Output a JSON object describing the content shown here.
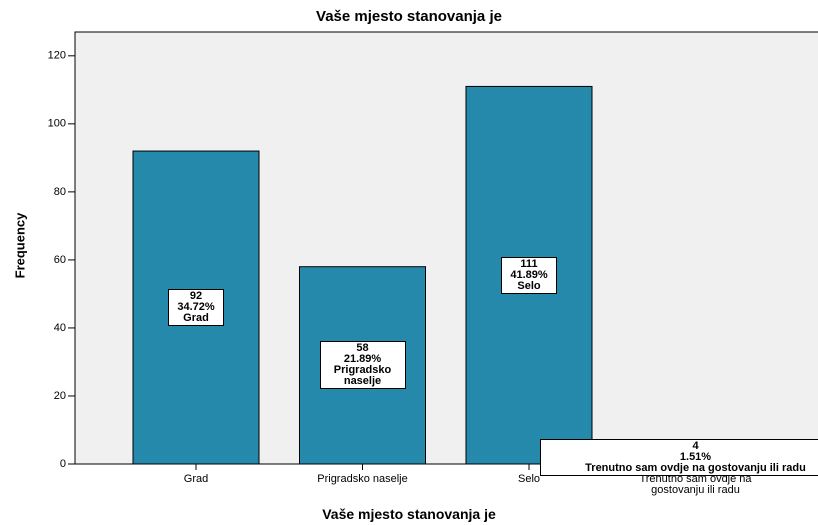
{
  "chart_data": {
    "type": "bar",
    "title": "Vaše mjesto stanovanja je",
    "x_label": "Vaše mjesto stanovanja je",
    "y_label": "Frequency",
    "categories": [
      "Grad",
      "Prigradsko naselje",
      "Selo",
      "Trenutno sam ovdje na gostovanju ili radu"
    ],
    "values": [
      92,
      58,
      111,
      4
    ],
    "percent_labels": [
      "34.72%",
      "21.89%",
      "41.89%",
      "1.51%"
    ],
    "color": "#2589ab",
    "ylim": [
      0,
      127
    ],
    "yticks": [
      0,
      20,
      40,
      60,
      80,
      100,
      120
    ],
    "grid": false
  }
}
